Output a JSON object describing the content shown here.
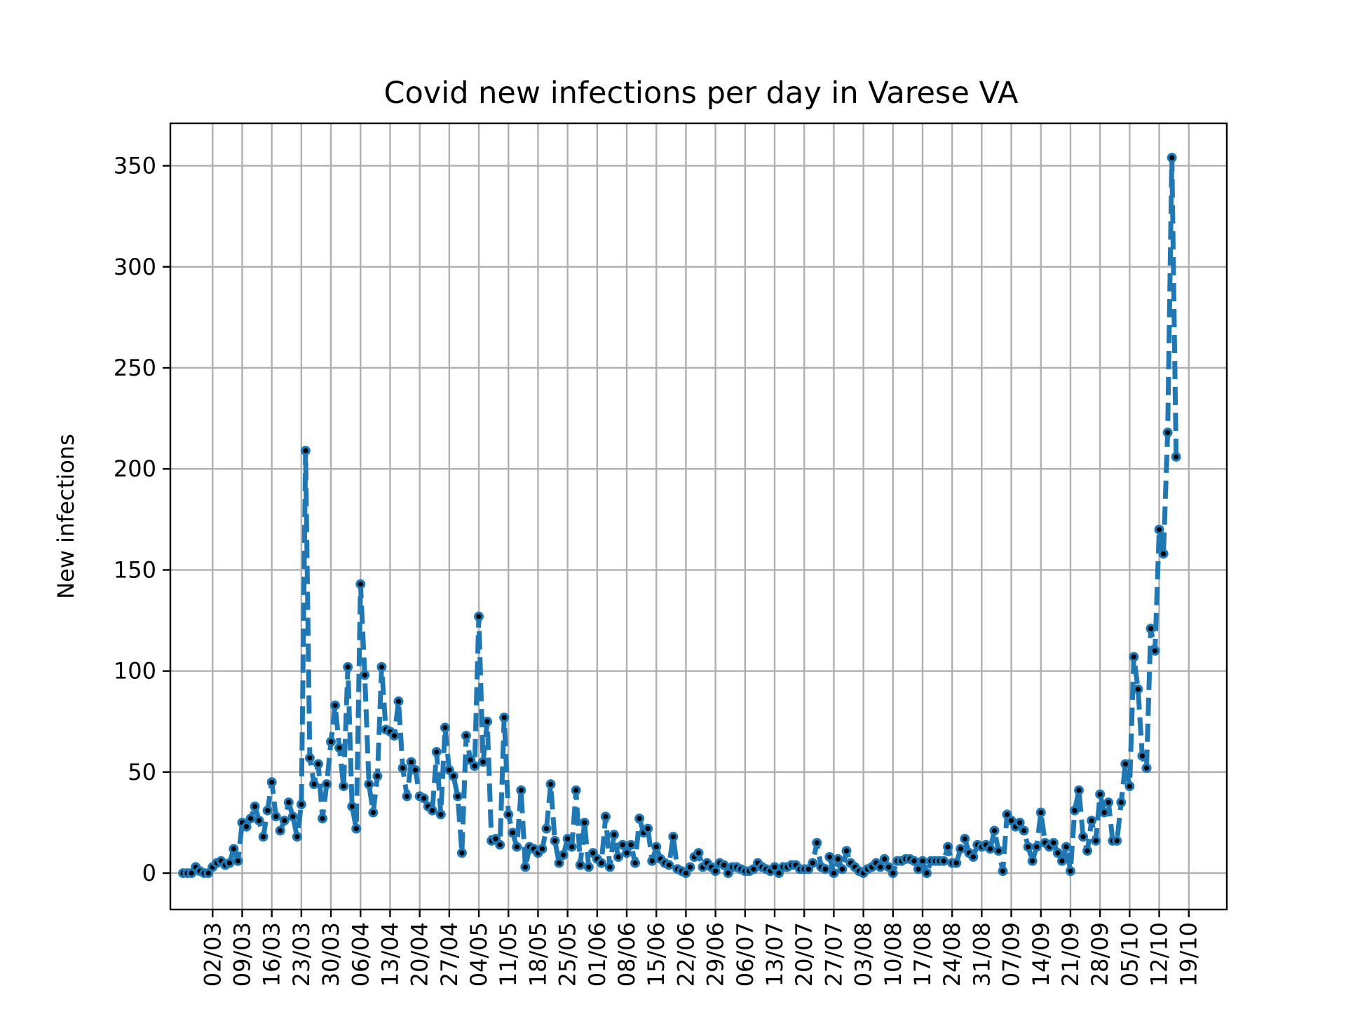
{
  "chart_data": {
    "type": "line",
    "title": "Covid new infections per day in Varese VA",
    "xlabel": "",
    "ylabel": "New infections",
    "x_start": "24/02",
    "xlim": [
      "21/02",
      "28/10"
    ],
    "ylim": [
      -18,
      371
    ],
    "grid": true,
    "legend": "none",
    "x_tick_labels": [
      "02/03",
      "09/03",
      "16/03",
      "23/03",
      "30/03",
      "06/04",
      "13/04",
      "20/04",
      "27/04",
      "04/05",
      "11/05",
      "18/05",
      "25/05",
      "01/06",
      "08/06",
      "15/06",
      "22/06",
      "29/06",
      "06/07",
      "13/07",
      "20/07",
      "27/07",
      "03/08",
      "10/08",
      "17/08",
      "24/08",
      "31/08",
      "07/09",
      "14/09",
      "21/09",
      "28/09",
      "05/10",
      "12/10",
      "19/10"
    ],
    "y_ticks": [
      0,
      50,
      100,
      150,
      200,
      250,
      300,
      350
    ],
    "y_tick_labels": [
      "0",
      "50",
      "100",
      "150",
      "200",
      "250",
      "300",
      "350"
    ],
    "series": [
      {
        "color": "#1f77b4",
        "marker_color": "#000000",
        "values": [
          0,
          0,
          0,
          3,
          1,
          0,
          0,
          3,
          5,
          6,
          4,
          5,
          12,
          6,
          25,
          23,
          27,
          33,
          26,
          18,
          31,
          45,
          28,
          21,
          26,
          35,
          28,
          18,
          34,
          209,
          57,
          44,
          54,
          27,
          44,
          65,
          83,
          62,
          43,
          102,
          33,
          22,
          143,
          98,
          44,
          30,
          48,
          102,
          71,
          70,
          68,
          85,
          52,
          38,
          55,
          51,
          38,
          37,
          33,
          31,
          60,
          29,
          72,
          51,
          48,
          38,
          10,
          68,
          56,
          53,
          127,
          55,
          75,
          16,
          17,
          14,
          77,
          29,
          20,
          13,
          41,
          3,
          13,
          12,
          10,
          12,
          22,
          44,
          16,
          5,
          9,
          17,
          13,
          41,
          4,
          25,
          3,
          10,
          7,
          5,
          28,
          3,
          19,
          8,
          14,
          10,
          14,
          5,
          27,
          20,
          22,
          6,
          13,
          7,
          5,
          4,
          18,
          2,
          1,
          0,
          3,
          8,
          10,
          3,
          5,
          3,
          1,
          5,
          4,
          0,
          3,
          3,
          2,
          1,
          1,
          2,
          5,
          3,
          2,
          1,
          3,
          0,
          3,
          3,
          4,
          4,
          2,
          2,
          2,
          5,
          15,
          3,
          2,
          8,
          0,
          7,
          2,
          11,
          5,
          3,
          1,
          0,
          2,
          3,
          5,
          3,
          7,
          3,
          0,
          6,
          6,
          7,
          7,
          6,
          2,
          6,
          0,
          6,
          6,
          6,
          6,
          13,
          5,
          5,
          12,
          17,
          10,
          8,
          14,
          13,
          14,
          12,
          21,
          11,
          1,
          29,
          26,
          23,
          25,
          21,
          13,
          6,
          13,
          30,
          15,
          13,
          15,
          10,
          6,
          13,
          1,
          31,
          41,
          18,
          11,
          26,
          16,
          39,
          30,
          35,
          16,
          16,
          35,
          54,
          43,
          107,
          91,
          58,
          52,
          121,
          110,
          170,
          158,
          218,
          354,
          206
        ]
      }
    ]
  }
}
